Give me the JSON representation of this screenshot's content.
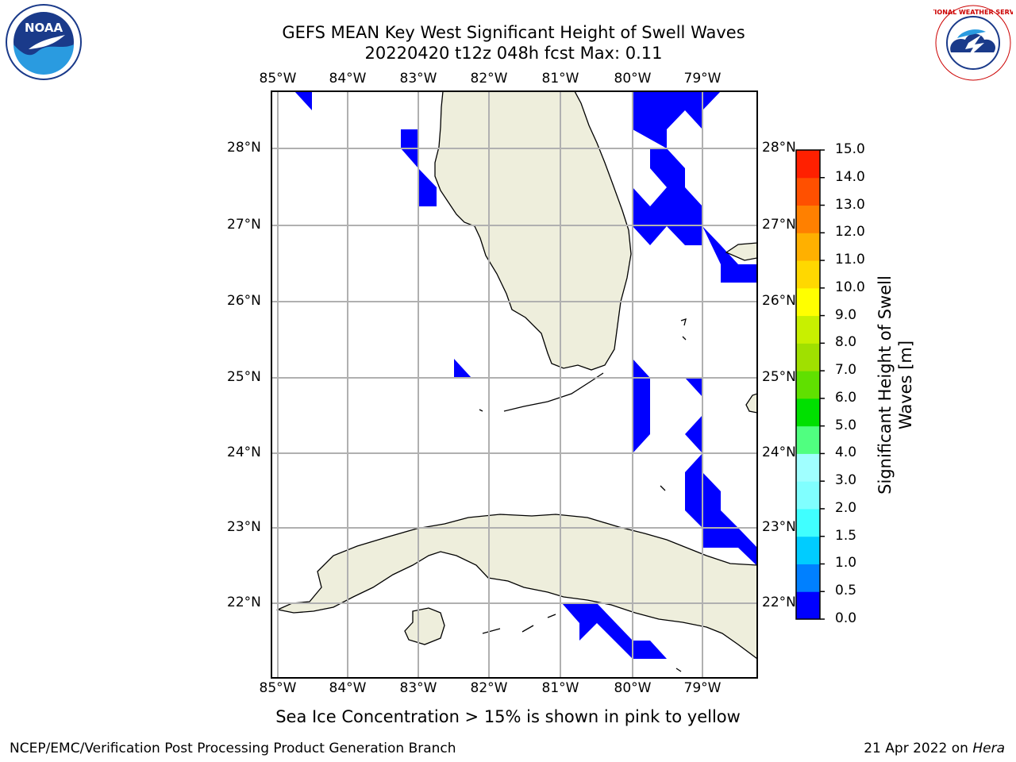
{
  "title_line1": "GEFS MEAN Key West Significant Height of Swell Waves",
  "title_line2": "20220420 t12z 048h fcst   Max: 0.11",
  "lon_labels": [
    "85°W",
    "84°W",
    "83°W",
    "82°W",
    "81°W",
    "80°W",
    "79°W"
  ],
  "lat_labels": [
    "28°N",
    "27°N",
    "26°N",
    "25°N",
    "24°N",
    "23°N",
    "22°N"
  ],
  "colorbar": {
    "title": "Significant Height of Swell Waves [m]",
    "ticks": [
      "0.0",
      "0.5",
      "1.0",
      "1.5",
      "2.0",
      "3.0",
      "4.0",
      "5.0",
      "6.0",
      "7.0",
      "8.0",
      "9.0",
      "10.0",
      "11.0",
      "12.0",
      "13.0",
      "14.0",
      "15.0"
    ],
    "colors": [
      "#0000ff",
      "#0080ff",
      "#00ccff",
      "#40ffff",
      "#80ffff",
      "#a0ffff",
      "#50ff80",
      "#00e000",
      "#60e000",
      "#a0e000",
      "#c8f000",
      "#ffff00",
      "#ffd800",
      "#ffb000",
      "#ff8000",
      "#ff5000",
      "#ff2000",
      "#ff0000"
    ]
  },
  "ice_note": "Sea Ice Concentration > 15% is shown in pink to yellow",
  "footer_left": "NCEP/EMC/Verification Post Processing Product Generation Branch",
  "footer_right_prefix": "21 Apr 2022 on ",
  "footer_right_host": "Hera",
  "logo_left_text": "NOAA",
  "logo_right_text": "NATIONAL WEATHER SERVICE",
  "land_color": "#eeeedc",
  "swell_color": "#0000ff"
}
